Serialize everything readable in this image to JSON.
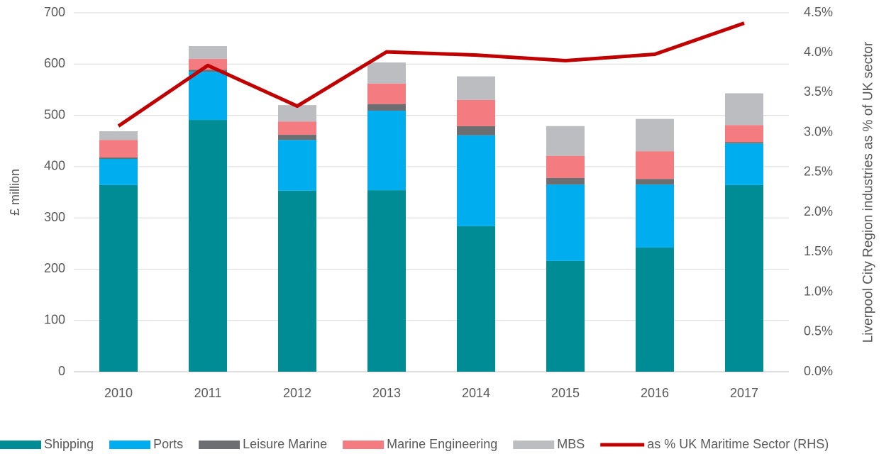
{
  "chart_data": {
    "type": "bar",
    "stacked": true,
    "categories": [
      "2010",
      "2011",
      "2012",
      "2013",
      "2014",
      "2015",
      "2016",
      "2017"
    ],
    "series": [
      {
        "name": "Shipping",
        "color": "#008c95",
        "values": [
          364,
          491,
          353,
          354,
          284,
          216,
          242,
          364
        ]
      },
      {
        "name": "Ports",
        "color": "#00aeef",
        "values": [
          51,
          94,
          99,
          155,
          177,
          149,
          123,
          81
        ]
      },
      {
        "name": "Leisure Marine",
        "color": "#6d6e71",
        "values": [
          3,
          4,
          10,
          13,
          18,
          13,
          11,
          3
        ]
      },
      {
        "name": "Marine Engineering",
        "color": "#f47b7f",
        "values": [
          34,
          21,
          26,
          40,
          51,
          43,
          54,
          33
        ]
      },
      {
        "name": "MBS",
        "color": "#bcbdc0",
        "values": [
          17,
          25,
          32,
          41,
          46,
          58,
          63,
          62
        ]
      },
      {
        "name": "as % UK Maritime Sector (RHS)",
        "color": "#c00000",
        "type": "line",
        "axis": "y2",
        "values": [
          3.08,
          3.84,
          3.33,
          4.01,
          3.97,
          3.9,
          3.98,
          4.37
        ]
      }
    ],
    "ylabel": "£ million",
    "y2label": "Liverpool City Region industries as % of UK sector",
    "ylim": [
      0,
      700
    ],
    "yticks": [
      0,
      100,
      200,
      300,
      400,
      500,
      600,
      700
    ],
    "y2lim": [
      0,
      4.5
    ],
    "y2ticks": [
      {
        "value": 0,
        "label": "0.0%"
      },
      {
        "value": 0.5,
        "label": "0.5%"
      },
      {
        "value": 1,
        "label": "1.0%"
      },
      {
        "value": 1.5,
        "label": "1.5%"
      },
      {
        "value": 2,
        "label": "2.0%"
      },
      {
        "value": 2.5,
        "label": "2.5%"
      },
      {
        "value": 3,
        "label": "3.0%"
      },
      {
        "value": 3.5,
        "label": "3.5%"
      },
      {
        "value": 4,
        "label": "4.0%"
      },
      {
        "value": 4.5,
        "label": "4.5%"
      }
    ],
    "grid": true,
    "legend": "bottom"
  }
}
